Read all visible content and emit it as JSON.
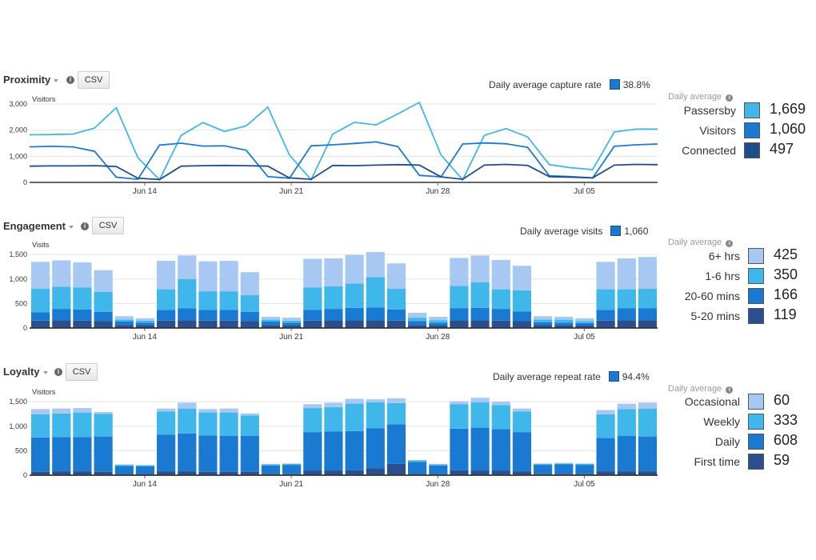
{
  "panels": {
    "proximity": {
      "title": "Proximity",
      "csv": "CSV",
      "avg_label": "Daily average capture rate",
      "avg_value": "38.8%",
      "side_head": "Daily average",
      "legend": [
        {
          "label": "Passersby",
          "value": "1,669",
          "color": "#3fb7ea"
        },
        {
          "label": "Visitors",
          "value": "1,060",
          "color": "#1a7ad2"
        },
        {
          "label": "Connected",
          "value": "497",
          "color": "#1f4e8c"
        }
      ]
    },
    "engagement": {
      "title": "Engagement",
      "csv": "CSV",
      "avg_label": "Daily average visits",
      "avg_value": "1,060",
      "side_head": "Daily average",
      "legend": [
        {
          "label": "6+ hrs",
          "value": "425",
          "color": "#a6c8f2"
        },
        {
          "label": "1-6 hrs",
          "value": "350",
          "color": "#3fb7ea"
        },
        {
          "label": "20-60 mins",
          "value": "166",
          "color": "#1a7ad2"
        },
        {
          "label": "5-20 mins",
          "value": "119",
          "color": "#2a4f8e"
        }
      ]
    },
    "loyalty": {
      "title": "Loyalty",
      "csv": "CSV",
      "avg_label": "Daily average repeat rate",
      "avg_value": "94.4%",
      "side_head": "Daily average",
      "legend": [
        {
          "label": "Occasional",
          "value": "60",
          "color": "#a6c8f2"
        },
        {
          "label": "Weekly",
          "value": "333",
          "color": "#3fb7ea"
        },
        {
          "label": "Daily",
          "value": "608",
          "color": "#1a7ad2"
        },
        {
          "label": "First time",
          "value": "59",
          "color": "#2a4f8e"
        }
      ]
    }
  },
  "chart_data": [
    {
      "type": "line",
      "title": "Proximity",
      "ylabel": "Visitors",
      "ylim": [
        0,
        3000
      ],
      "yticks": [
        "0",
        "1,000",
        "2,000",
        "3,000"
      ],
      "x_tick_labels": [
        {
          "label": "Jun 14",
          "index": 5
        },
        {
          "label": "Jun 21",
          "index": 12
        },
        {
          "label": "Jun 28",
          "index": 19
        },
        {
          "label": "Jul 05",
          "index": 26
        }
      ],
      "x": [
        "Jun 9",
        "Jun 10",
        "Jun 11",
        "Jun 12",
        "Jun 13",
        "Jun 14",
        "Jun 15",
        "Jun 16",
        "Jun 17",
        "Jun 18",
        "Jun 19",
        "Jun 20",
        "Jun 21",
        "Jun 22",
        "Jun 23",
        "Jun 24",
        "Jun 25",
        "Jun 26",
        "Jun 27",
        "Jun 28",
        "Jun 29",
        "Jun 30",
        "Jul 01",
        "Jul 02",
        "Jul 03",
        "Jul 04",
        "Jul 05",
        "Jul 06",
        "Jul 07",
        "Jul 08"
      ],
      "grid": true,
      "series": [
        {
          "name": "Passersby",
          "color": "#3fb7ea",
          "values": [
            1820,
            1830,
            1850,
            2080,
            2860,
            950,
            100,
            1800,
            2290,
            1950,
            2160,
            2880,
            1050,
            100,
            1850,
            2300,
            2200,
            2620,
            3060,
            1050,
            100,
            1800,
            2060,
            1740,
            680,
            560,
            490,
            1930,
            2040,
            2040
          ]
        },
        {
          "name": "Visitors",
          "color": "#1a7ad2",
          "values": [
            1360,
            1380,
            1360,
            1190,
            200,
            120,
            1430,
            1500,
            1390,
            1400,
            1230,
            220,
            160,
            1400,
            1440,
            1490,
            1550,
            1370,
            270,
            210,
            1470,
            1510,
            1480,
            1340,
            250,
            220,
            170,
            1380,
            1440,
            1470
          ]
        },
        {
          "name": "Connected",
          "color": "#1f4e8c",
          "values": [
            620,
            630,
            630,
            640,
            610,
            160,
            110,
            620,
            640,
            650,
            640,
            620,
            170,
            120,
            650,
            640,
            660,
            680,
            660,
            210,
            120,
            660,
            690,
            650,
            220,
            200,
            170,
            660,
            690,
            680
          ]
        }
      ]
    },
    {
      "type": "bar",
      "stacked": true,
      "title": "Engagement",
      "ylabel": "Visits",
      "ylim": [
        0,
        1600
      ],
      "yticks": [
        "0",
        "500",
        "1,000",
        "1,500"
      ],
      "x_tick_labels": [
        {
          "label": "Jun 14",
          "index": 5
        },
        {
          "label": "Jun 21",
          "index": 12
        },
        {
          "label": "Jun 28",
          "index": 19
        },
        {
          "label": "Jul 05",
          "index": 26
        }
      ],
      "grid": true,
      "series": [
        {
          "name": "5-20 mins",
          "color": "#2a4f8e",
          "values": [
            150,
            160,
            150,
            140,
            60,
            50,
            150,
            160,
            150,
            150,
            140,
            60,
            50,
            150,
            160,
            160,
            160,
            150,
            60,
            50,
            160,
            160,
            150,
            140,
            60,
            50,
            50,
            150,
            160,
            160
          ]
        },
        {
          "name": "20-60 mins",
          "color": "#1a7ad2",
          "values": [
            170,
            230,
            230,
            190,
            70,
            60,
            220,
            240,
            220,
            220,
            190,
            70,
            60,
            220,
            230,
            250,
            260,
            230,
            80,
            60,
            240,
            250,
            240,
            200,
            60,
            60,
            50,
            220,
            240,
            240
          ]
        },
        {
          "name": "1-6 hrs",
          "color": "#3fb7ea",
          "values": [
            480,
            450,
            450,
            410,
            40,
            40,
            420,
            600,
            380,
            380,
            340,
            40,
            40,
            460,
            460,
            500,
            620,
            420,
            70,
            50,
            460,
            520,
            400,
            430,
            50,
            60,
            40,
            420,
            390,
            400
          ]
        },
        {
          "name": "6+ hrs",
          "color": "#a6c8f2",
          "values": [
            550,
            540,
            510,
            440,
            70,
            50,
            580,
            480,
            610,
            620,
            470,
            60,
            60,
            580,
            570,
            580,
            510,
            520,
            100,
            70,
            570,
            550,
            600,
            500,
            70,
            60,
            60,
            560,
            630,
            650
          ]
        }
      ]
    },
    {
      "type": "bar",
      "stacked": true,
      "title": "Loyalty",
      "ylabel": "Visitors",
      "ylim": [
        0,
        1600
      ],
      "yticks": [
        "0",
        "500",
        "1,000",
        "1,500"
      ],
      "x_tick_labels": [
        {
          "label": "Jun 14",
          "index": 5
        },
        {
          "label": "Jun 21",
          "index": 12
        },
        {
          "label": "Jun 28",
          "index": 19
        },
        {
          "label": "Jul 05",
          "index": 26
        }
      ],
      "grid": true,
      "series": [
        {
          "name": "First time",
          "color": "#2a4f8e",
          "values": [
            70,
            80,
            80,
            70,
            30,
            30,
            80,
            80,
            70,
            70,
            70,
            30,
            30,
            90,
            90,
            100,
            140,
            230,
            30,
            30,
            100,
            90,
            90,
            80,
            30,
            30,
            30,
            80,
            80,
            80
          ]
        },
        {
          "name": "Daily",
          "color": "#1a7ad2",
          "values": [
            700,
            700,
            700,
            720,
            160,
            150,
            750,
            770,
            740,
            730,
            730,
            170,
            180,
            790,
            800,
            800,
            820,
            810,
            240,
            170,
            850,
            880,
            850,
            800,
            180,
            190,
            180,
            680,
            720,
            710
          ]
        },
        {
          "name": "Weekly",
          "color": "#3fb7ea",
          "values": [
            470,
            480,
            500,
            460,
            20,
            20,
            470,
            510,
            470,
            480,
            420,
            20,
            20,
            490,
            500,
            560,
            530,
            430,
            30,
            20,
            500,
            520,
            490,
            420,
            20,
            20,
            20,
            480,
            550,
            570
          ]
        },
        {
          "name": "Occasional",
          "color": "#a6c8f2",
          "values": [
            110,
            100,
            90,
            40,
            10,
            10,
            60,
            120,
            70,
            80,
            40,
            10,
            10,
            80,
            90,
            100,
            60,
            100,
            10,
            10,
            60,
            90,
            70,
            60,
            10,
            10,
            10,
            90,
            110,
            120
          ]
        }
      ]
    }
  ]
}
